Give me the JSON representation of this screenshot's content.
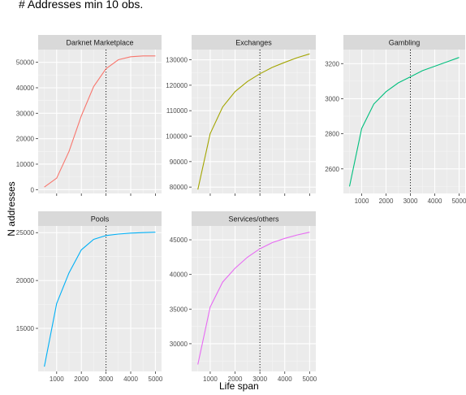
{
  "title": "# Addresses min 10 obs.",
  "ylabel": "N addresses",
  "xlabel": "Life span",
  "vline_x": 3000,
  "chart_data": [
    {
      "type": "line",
      "facet": "Darknet Marketplace",
      "color": "#F8766D",
      "x": [
        500,
        1000,
        1500,
        2000,
        2500,
        3000,
        3500,
        4000,
        4500,
        5000
      ],
      "y": [
        1000,
        4500,
        15000,
        29000,
        40500,
        47500,
        51000,
        52200,
        52500,
        52500
      ],
      "xlim": [
        250,
        5250
      ],
      "ylim": [
        -1500,
        55000
      ],
      "yticks": [
        0,
        10000,
        20000,
        30000,
        40000,
        50000
      ],
      "yticklabels": [
        "0",
        "10000",
        "20000",
        "30000",
        "40000",
        "50000"
      ],
      "xticks": [
        1000,
        2000,
        3000,
        4000,
        5000
      ],
      "xticklabels": [],
      "grid": true
    },
    {
      "type": "line",
      "facet": "Exchanges",
      "color": "#A3A500",
      "x": [
        500,
        1000,
        1500,
        2000,
        2500,
        3000,
        3500,
        4000,
        4500,
        5000
      ],
      "y": [
        79000,
        101000,
        111500,
        117500,
        121500,
        124500,
        127000,
        129000,
        130800,
        132300
      ],
      "xlim": [
        250,
        5250
      ],
      "ylim": [
        77500,
        134000
      ],
      "yticks": [
        80000,
        90000,
        100000,
        110000,
        120000,
        130000
      ],
      "yticklabels": [
        "80000",
        "90000",
        "100000",
        "110000",
        "120000",
        "130000"
      ],
      "xticks": [
        1000,
        2000,
        3000,
        4000,
        5000
      ],
      "xticklabels": [],
      "grid": true
    },
    {
      "type": "line",
      "facet": "Gambling",
      "color": "#00BF7D",
      "x": [
        500,
        1000,
        1500,
        2000,
        2500,
        3000,
        3500,
        4000,
        4500,
        5000
      ],
      "y": [
        2500,
        2830,
        2970,
        3040,
        3090,
        3125,
        3160,
        3185,
        3210,
        3235
      ],
      "xlim": [
        250,
        5250
      ],
      "ylim": [
        2460,
        3280
      ],
      "yticks": [
        2600,
        2800,
        3000,
        3200
      ],
      "yticklabels": [
        "2600",
        "2800",
        "3000",
        "3200"
      ],
      "xticks": [
        1000,
        2000,
        3000,
        4000,
        5000
      ],
      "xticklabels": [
        "1000",
        "2000",
        "3000",
        "4000",
        "5000"
      ],
      "grid": true
    },
    {
      "type": "line",
      "facet": "Pools",
      "color": "#00B0F6",
      "x": [
        500,
        1000,
        1500,
        2000,
        2500,
        3000,
        3500,
        4000,
        4500,
        5000
      ],
      "y": [
        11000,
        17600,
        20800,
        23200,
        24300,
        24700,
        24850,
        24950,
        25000,
        25050
      ],
      "xlim": [
        250,
        5250
      ],
      "ylim": [
        10500,
        25700
      ],
      "yticks": [
        15000,
        20000,
        25000
      ],
      "yticklabels": [
        "15000",
        "20000",
        "25000"
      ],
      "xticks": [
        1000,
        2000,
        3000,
        4000,
        5000
      ],
      "xticklabels": [
        "1000",
        "2000",
        "3000",
        "4000",
        "5000"
      ],
      "grid": true
    },
    {
      "type": "line",
      "facet": "Services/others",
      "color": "#E76BF3",
      "x": [
        500,
        1000,
        1500,
        2000,
        2500,
        3000,
        3500,
        4000,
        4500,
        5000
      ],
      "y": [
        27000,
        35300,
        38900,
        40900,
        42500,
        43700,
        44600,
        45200,
        45700,
        46100
      ],
      "xlim": [
        250,
        5250
      ],
      "ylim": [
        26000,
        47000
      ],
      "yticks": [
        30000,
        35000,
        40000,
        45000
      ],
      "yticklabels": [
        "30000",
        "35000",
        "40000",
        "45000"
      ],
      "xticks": [
        1000,
        2000,
        3000,
        4000,
        5000
      ],
      "xticklabels": [
        "1000",
        "2000",
        "3000",
        "4000",
        "5000"
      ],
      "grid": true
    }
  ]
}
